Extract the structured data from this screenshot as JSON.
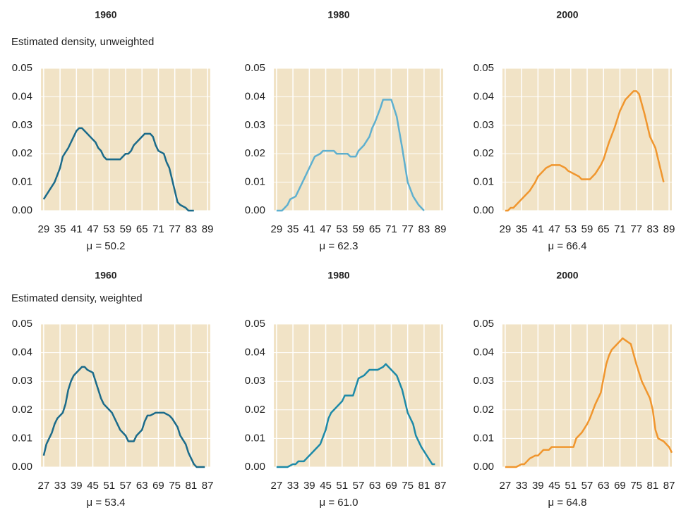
{
  "chart_data": [
    {
      "type": "line",
      "title": "1960",
      "subtitle": "Estimated density, unweighted",
      "xlabel": "μ = 50.2",
      "color": "#1b6b8a",
      "grid": true,
      "xlim": [
        28,
        90
      ],
      "xticks": [
        29,
        35,
        41,
        47,
        53,
        59,
        65,
        71,
        77,
        83,
        89
      ],
      "ylim": [
        0,
        0.05
      ],
      "yticks": [
        {
          "value": 0,
          "label": "0.00"
        },
        0.01,
        0.02,
        0.03,
        0.04,
        0.05
      ],
      "x": [
        29,
        31,
        33,
        35,
        36,
        38,
        40,
        41,
        42,
        43,
        45,
        47,
        48,
        49,
        50,
        51,
        52,
        54,
        56,
        57,
        58,
        59,
        60,
        61,
        62,
        64,
        66,
        68,
        69,
        70,
        71,
        73,
        74,
        75,
        76,
        77,
        78,
        79,
        81,
        82,
        84
      ],
      "values": [
        0.004,
        0.007,
        0.01,
        0.015,
        0.019,
        0.022,
        0.026,
        0.028,
        0.029,
        0.029,
        0.027,
        0.025,
        0.024,
        0.022,
        0.021,
        0.019,
        0.018,
        0.018,
        0.018,
        0.018,
        0.019,
        0.02,
        0.02,
        0.021,
        0.023,
        0.025,
        0.027,
        0.027,
        0.026,
        0.023,
        0.021,
        0.02,
        0.017,
        0.015,
        0.011,
        0.007,
        0.003,
        0.002,
        0.001,
        0,
        0
      ]
    },
    {
      "type": "line",
      "title": "1980",
      "xlabel": "μ = 62.3",
      "color": "#5fb0cf",
      "grid": true,
      "xlim": [
        28,
        90
      ],
      "xticks": [
        29,
        35,
        41,
        47,
        53,
        59,
        65,
        71,
        77,
        83,
        89
      ],
      "ylim": [
        0,
        0.05
      ],
      "yticks": [
        {
          "value": 0,
          "label": "0.00"
        },
        0.01,
        0.02,
        0.03,
        0.04,
        0.05
      ],
      "x": [
        29,
        31,
        33,
        34,
        36,
        38,
        40,
        42,
        43,
        45,
        46,
        48,
        50,
        51,
        53,
        55,
        56,
        58,
        59,
        61,
        63,
        64,
        65,
        67,
        68,
        70,
        71,
        73,
        75,
        77,
        79,
        81,
        83
      ],
      "values": [
        0,
        0,
        0.002,
        0.004,
        0.005,
        0.009,
        0.013,
        0.017,
        0.019,
        0.02,
        0.021,
        0.021,
        0.021,
        0.02,
        0.02,
        0.02,
        0.019,
        0.019,
        0.021,
        0.023,
        0.026,
        0.029,
        0.031,
        0.036,
        0.039,
        0.039,
        0.039,
        0.033,
        0.022,
        0.01,
        0.005,
        0.002,
        0
      ]
    },
    {
      "type": "line",
      "title": "2000",
      "xlabel": "μ = 66.4",
      "color": "#f0962e",
      "grid": true,
      "xlim": [
        28,
        90
      ],
      "xticks": [
        29,
        35,
        41,
        47,
        53,
        59,
        65,
        71,
        77,
        83,
        89
      ],
      "ylim": [
        0,
        0.05
      ],
      "yticks": [
        {
          "value": 0,
          "label": "0.00"
        },
        0.01,
        0.02,
        0.03,
        0.04,
        0.05
      ],
      "x": [
        29,
        30,
        31,
        32,
        34,
        36,
        38,
        40,
        41,
        42,
        43,
        44,
        46,
        49,
        51,
        52,
        54,
        56,
        57,
        60,
        62,
        64,
        65,
        67,
        69,
        71,
        73,
        75,
        76,
        77,
        78,
        80,
        82,
        84,
        86,
        87
      ],
      "values": [
        0,
        0,
        0.001,
        0.001,
        0.003,
        0.005,
        0.007,
        0.01,
        0.012,
        0.013,
        0.014,
        0.015,
        0.016,
        0.016,
        0.015,
        0.014,
        0.013,
        0.012,
        0.011,
        0.011,
        0.013,
        0.016,
        0.018,
        0.024,
        0.029,
        0.035,
        0.039,
        0.041,
        0.042,
        0.042,
        0.041,
        0.034,
        0.026,
        0.022,
        0.014,
        0.01
      ]
    },
    {
      "type": "line",
      "title": "1960",
      "subtitle": "Estimated density, weighted",
      "xlabel": "μ = 53.4",
      "color": "#1b6b8a",
      "grid": true,
      "xlim": [
        26,
        88
      ],
      "xticks": [
        27,
        33,
        39,
        45,
        51,
        57,
        63,
        69,
        75,
        81,
        87
      ],
      "ylim": [
        0,
        0.05
      ],
      "yticks": [
        {
          "value": 0,
          "label": "0.00"
        },
        0.01,
        0.02,
        0.03,
        0.04,
        0.05
      ],
      "x": [
        27,
        28,
        30,
        31,
        32,
        34,
        35,
        36,
        37,
        38,
        39,
        40,
        41,
        42,
        43,
        45,
        46,
        47,
        48,
        49,
        50,
        52,
        53,
        54,
        55,
        57,
        58,
        60,
        61,
        63,
        64,
        65,
        66,
        68,
        71,
        73,
        74,
        76,
        77,
        79,
        80,
        81,
        82,
        83,
        84,
        86
      ],
      "values": [
        0.004,
        0.008,
        0.012,
        0.015,
        0.017,
        0.019,
        0.022,
        0.027,
        0.03,
        0.032,
        0.033,
        0.034,
        0.035,
        0.035,
        0.034,
        0.033,
        0.03,
        0.027,
        0.024,
        0.022,
        0.021,
        0.019,
        0.017,
        0.015,
        0.013,
        0.011,
        0.009,
        0.009,
        0.011,
        0.013,
        0.016,
        0.018,
        0.018,
        0.019,
        0.019,
        0.018,
        0.017,
        0.014,
        0.011,
        0.008,
        0.005,
        0.003,
        0.001,
        0,
        0,
        0
      ]
    },
    {
      "type": "line",
      "title": "1980",
      "xlabel": "μ = 61.0",
      "color": "#1d8aa8",
      "grid": true,
      "xlim": [
        26,
        88
      ],
      "xticks": [
        27,
        33,
        39,
        45,
        51,
        57,
        63,
        69,
        75,
        81,
        87
      ],
      "ylim": [
        0,
        0.05
      ],
      "yticks": [
        {
          "value": 0,
          "label": "0.00"
        },
        0.01,
        0.02,
        0.03,
        0.04,
        0.05
      ],
      "x": [
        27,
        29,
        30,
        31,
        33,
        34,
        35,
        37,
        38,
        40,
        42,
        43,
        45,
        46,
        47,
        49,
        51,
        52,
        55,
        56,
        57,
        59,
        60,
        61,
        64,
        66,
        67,
        69,
        71,
        73,
        74,
        75,
        77,
        78,
        80,
        82,
        84,
        85
      ],
      "values": [
        0,
        0,
        0,
        0,
        0.001,
        0.001,
        0.002,
        0.002,
        0.003,
        0.005,
        0.007,
        0.008,
        0.013,
        0.017,
        0.019,
        0.021,
        0.023,
        0.025,
        0.025,
        0.028,
        0.031,
        0.032,
        0.033,
        0.034,
        0.034,
        0.035,
        0.036,
        0.034,
        0.032,
        0.027,
        0.023,
        0.019,
        0.015,
        0.011,
        0.007,
        0.004,
        0.001,
        0.001
      ]
    },
    {
      "type": "line",
      "title": "2000",
      "xlabel": "μ = 64.8",
      "color": "#f0962e",
      "grid": true,
      "xlim": [
        26,
        88
      ],
      "xticks": [
        27,
        33,
        39,
        45,
        51,
        57,
        63,
        69,
        75,
        81,
        87
      ],
      "ylim": [
        0,
        0.05
      ],
      "yticks": [
        {
          "value": 0,
          "label": "0.00"
        },
        0.01,
        0.02,
        0.03,
        0.04,
        0.05
      ],
      "x": [
        27,
        29,
        30,
        31,
        33,
        34,
        36,
        38,
        39,
        40,
        41,
        43,
        44,
        48,
        52,
        53,
        55,
        57,
        58,
        60,
        62,
        63,
        64,
        65,
        66,
        68,
        69,
        70,
        73,
        75,
        77,
        78,
        80,
        81,
        82,
        83,
        85,
        87,
        88
      ],
      "values": [
        0,
        0,
        0,
        0,
        0.001,
        0.001,
        0.003,
        0.004,
        0.004,
        0.005,
        0.006,
        0.006,
        0.007,
        0.007,
        0.007,
        0.01,
        0.012,
        0.015,
        0.017,
        0.022,
        0.026,
        0.031,
        0.036,
        0.039,
        0.041,
        0.043,
        0.044,
        0.045,
        0.043,
        0.036,
        0.03,
        0.028,
        0.024,
        0.02,
        0.013,
        0.01,
        0.009,
        0.007,
        0.005
      ]
    }
  ]
}
